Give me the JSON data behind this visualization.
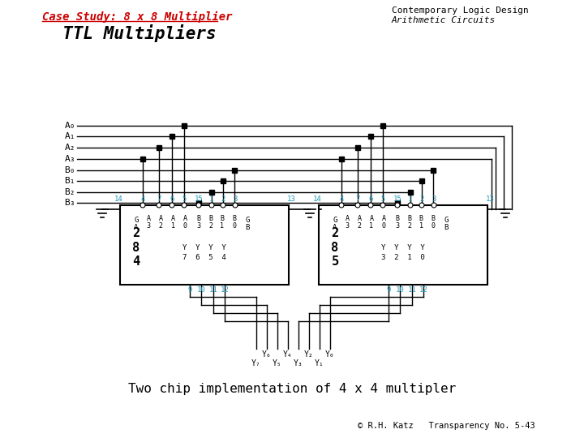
{
  "title_left": "Case Study: 8 x 8 Multiplier",
  "title_left_color": "#cc0000",
  "subtitle": "  TTL Multipliers",
  "top_right_line1": "Contemporary Logic Design",
  "top_right_line2": "Arithmetic Circuits",
  "bottom_text": "Two chip implementation of 4 x 4 multipler",
  "footer": "© R.H. Katz   Transparency No. 5-43",
  "bg_color": "#ffffff",
  "line_color": "#000000",
  "cyan_color": "#2299bb",
  "chip1_num": "2\n8\n4",
  "chip2_num": "2\n8\n5"
}
